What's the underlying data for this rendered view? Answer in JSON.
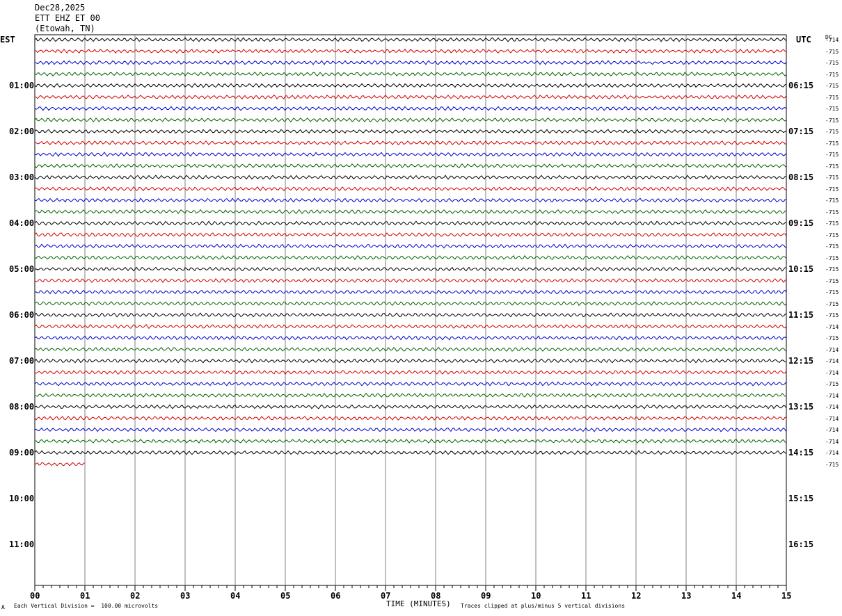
{
  "header": {
    "date": "Dec28,2025",
    "station": "ETT EHZ ET 00",
    "location": "(Etowah, TN)"
  },
  "axis_labels": {
    "left_tz": "EST",
    "right_tz": "UTC",
    "dc": "DC"
  },
  "footer": {
    "mark": "A",
    "scale": "Each Vertical Division =  100.00 microvolts",
    "xlabel": "TIME (MINUTES)",
    "clip_note": "Traces clipped at plus/minus 5 vertical divisions"
  },
  "colors": {
    "trace_cycle": [
      "#000000",
      "#d40000",
      "#0000cc",
      "#006400"
    ],
    "grid": "#808080"
  },
  "chart_data": {
    "type": "line",
    "title": "Dec28,2025",
    "xlabel": "TIME (MINUTES)",
    "x_ticks": [
      "00",
      "01",
      "02",
      "03",
      "04",
      "05",
      "06",
      "07",
      "08",
      "09",
      "10",
      "11",
      "12",
      "13",
      "14",
      "15"
    ],
    "xlim": [
      0,
      15
    ],
    "grid": "vertical lines every minute",
    "left_hour_labels": [
      "01:00",
      "02:00",
      "03:00",
      "04:00",
      "05:00",
      "06:00",
      "07:00",
      "08:00",
      "09:00",
      "10:00",
      "11:00"
    ],
    "right_hour_labels": [
      "06:15",
      "07:15",
      "08:15",
      "09:15",
      "10:15",
      "11:15",
      "12:15",
      "13:15",
      "14:15",
      "15:15",
      "16:15"
    ],
    "row_interval_minutes": 15,
    "total_rows_in_frame": 48,
    "traces_full_rows": 37,
    "last_trace_partial_minutes": 1,
    "dc_offsets": [
      "-714",
      "-715",
      "-715",
      "-715",
      "-715",
      "-715",
      "-715",
      "-715",
      "-715",
      "-715",
      "-715",
      "-715",
      "-715",
      "-715",
      "-715",
      "-715",
      "-715",
      "-715",
      "-715",
      "-715",
      "-715",
      "-715",
      "-715",
      "-715",
      "-715",
      "-714",
      "-715",
      "-714",
      "-714",
      "-714",
      "-715",
      "-714",
      "-714",
      "-714",
      "-714",
      "-714",
      "-714",
      "-715"
    ]
  }
}
